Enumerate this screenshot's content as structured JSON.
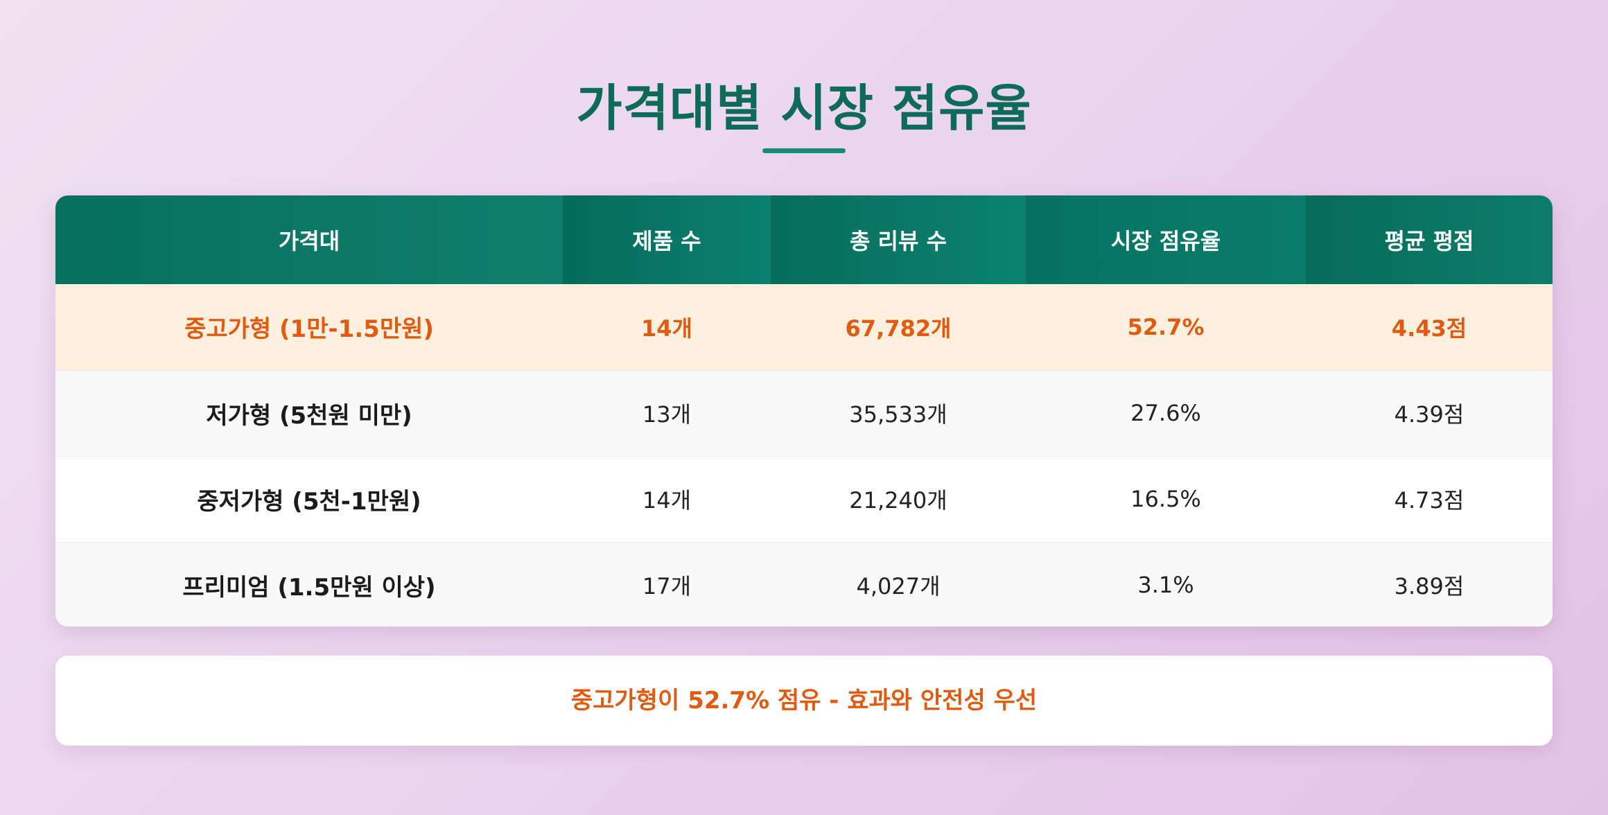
{
  "page": {
    "title": "가격대별 시장 점유율"
  },
  "table": {
    "headers": [
      "가격대",
      "제품 수",
      "총 리뷰 수",
      "시장 점유율",
      "평균 평점"
    ],
    "rows": [
      [
        "중고가형 (1만-1.5만원)",
        "14개",
        "67,782개",
        "52.7%",
        "4.43점"
      ],
      [
        "저가형 (5천원 미만)",
        "13개",
        "35,533개",
        "27.6%",
        "4.39점"
      ],
      [
        "중저가형 (5천-1만원)",
        "14개",
        "21,240개",
        "16.5%",
        "4.73점"
      ],
      [
        "프리미엄 (1.5만원 이상)",
        "17개",
        "4,027개",
        "3.1%",
        "3.89점"
      ]
    ]
  },
  "summary": {
    "text": "중고가형이 52.7% 점유 - 효과와 안전성 우선"
  },
  "colors": {
    "header_green": "#0b7a68",
    "title_green": "#0e6b5a",
    "highlight_orange": "#e05a10",
    "highlight_row_bg": "#fef0de"
  }
}
